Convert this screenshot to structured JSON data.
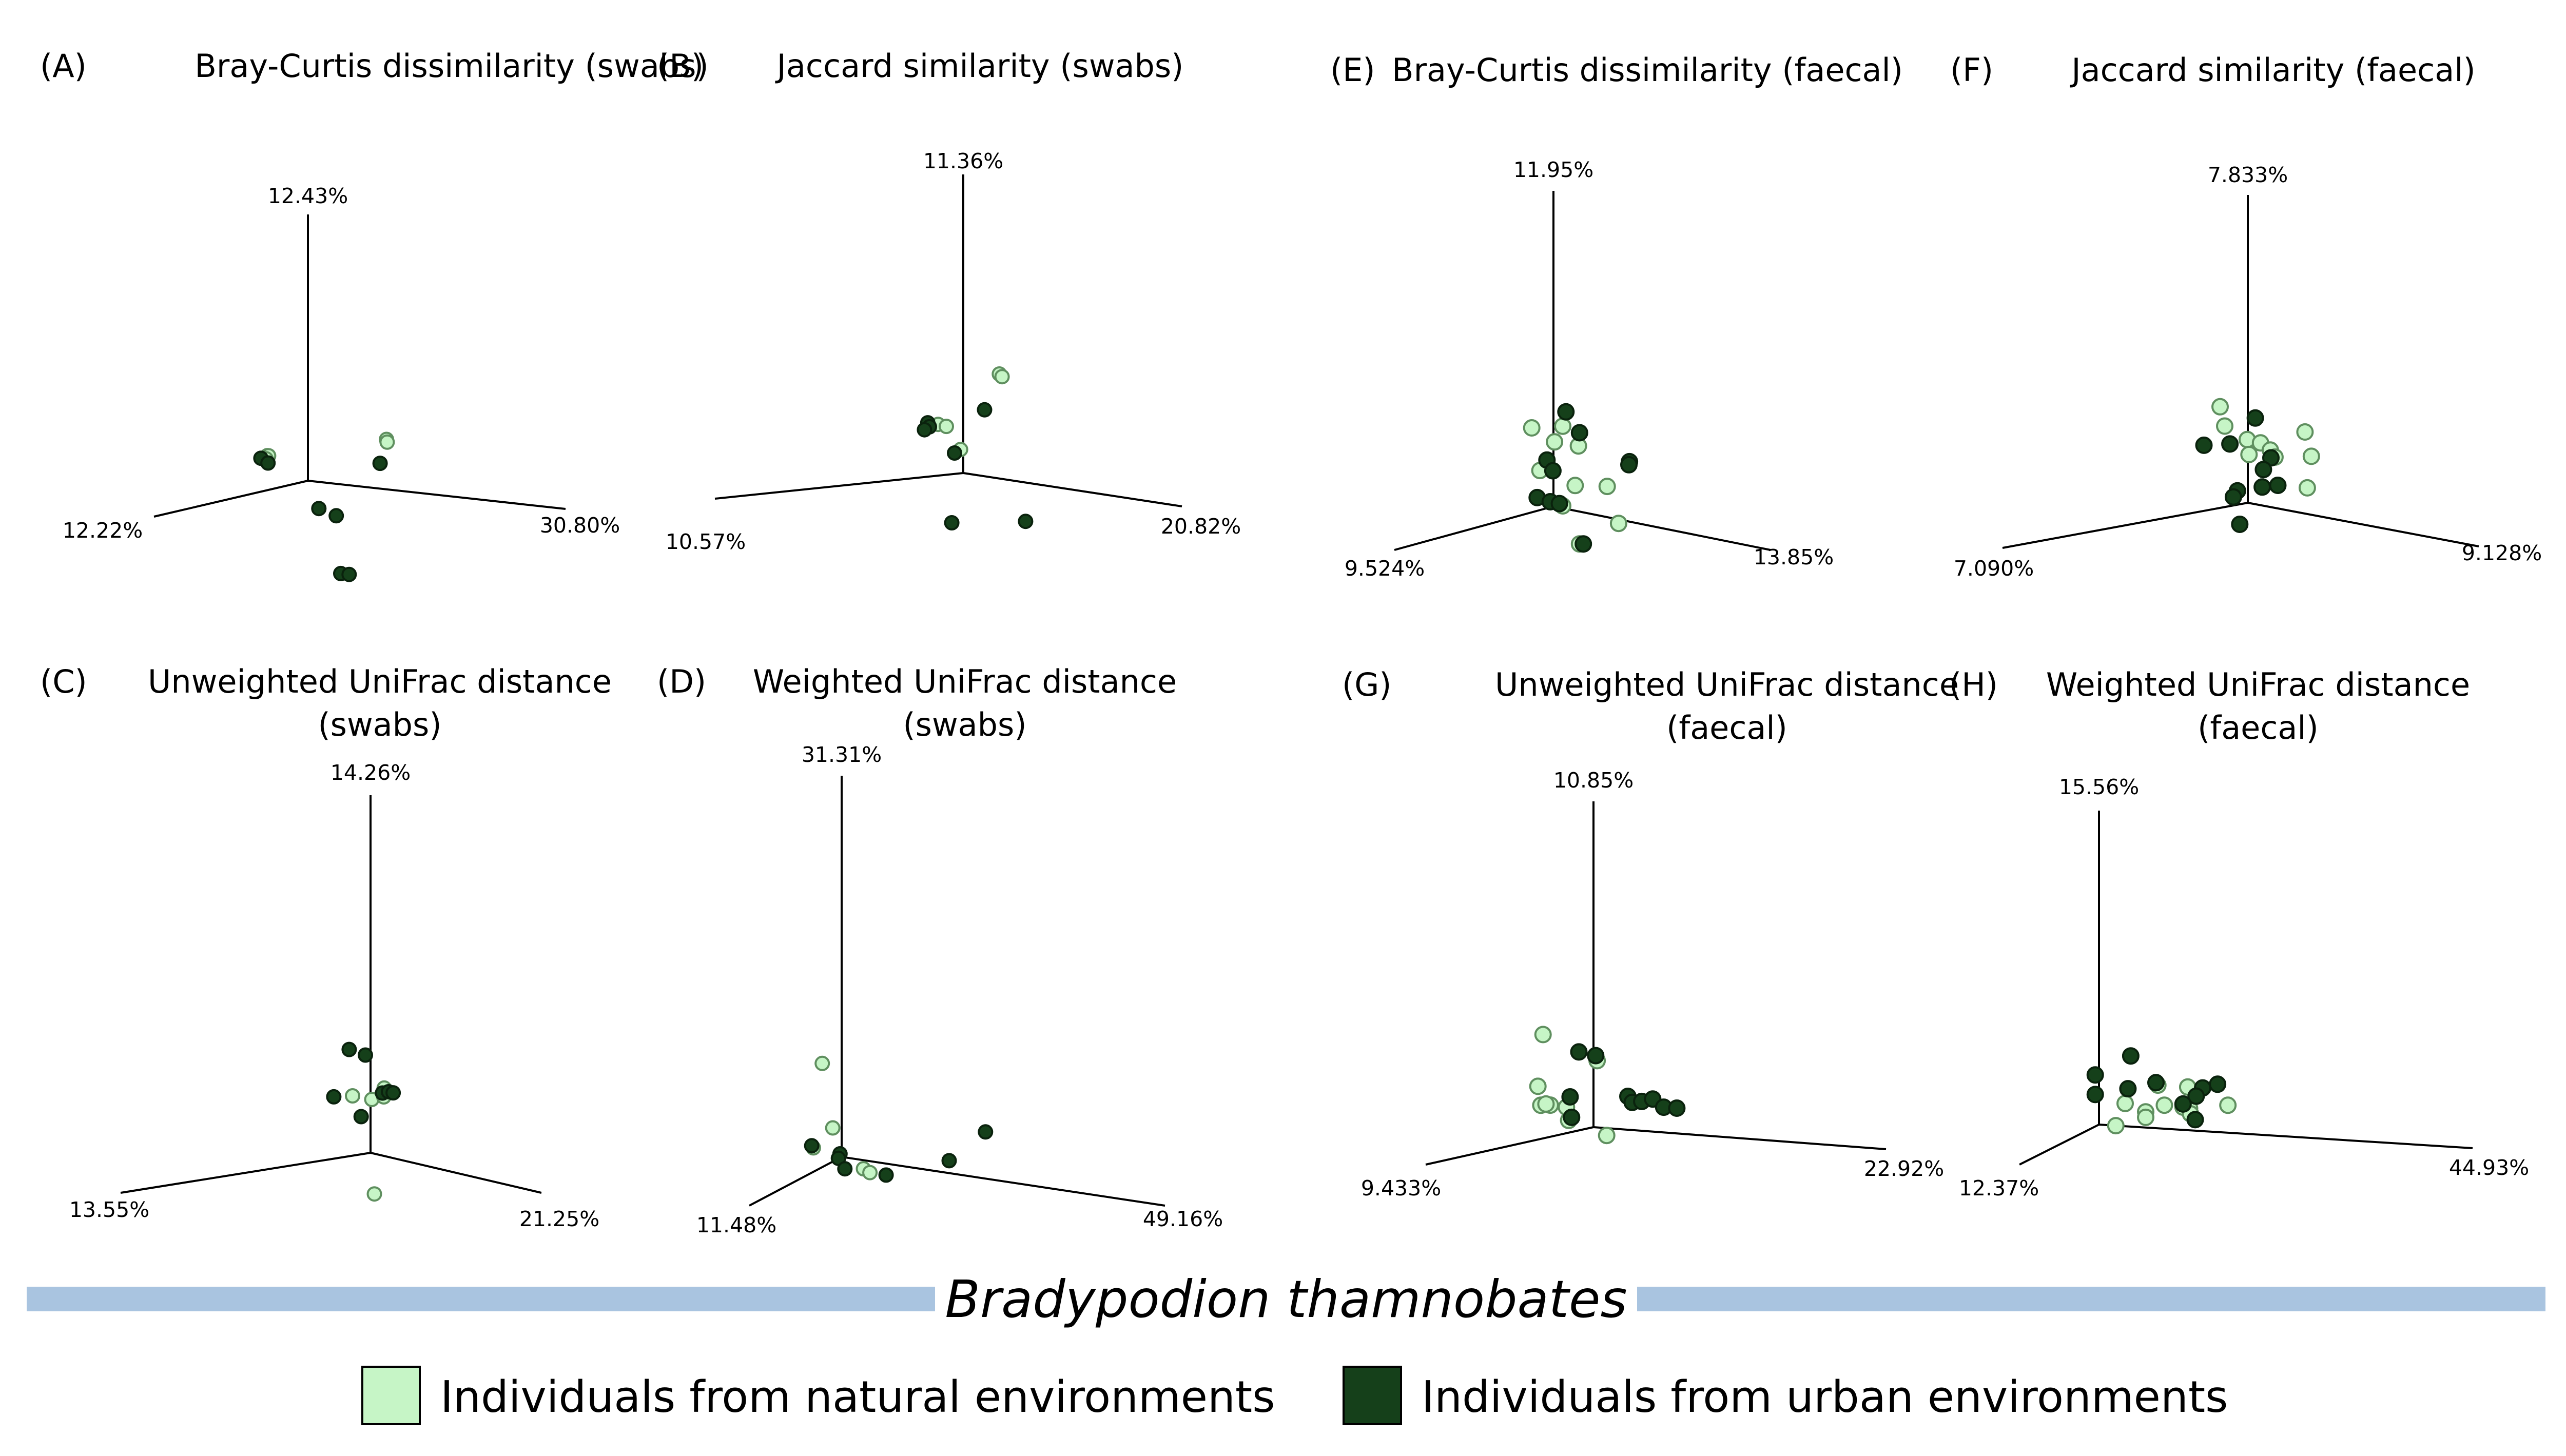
{
  "colors": {
    "natural": "#c6f5c6",
    "urban": "#15401a",
    "species_bar": "#a9c4e0"
  },
  "species": "Bradypodion thamnobates",
  "legend": [
    {
      "key": "natural",
      "label": "Individuals from natural environments"
    },
    {
      "key": "urban",
      "label": "Individuals from urban environments"
    }
  ],
  "chart_data": [
    {
      "type": "scatter",
      "letter": "(A)",
      "title": [
        "Bray-Curtis dissimilarity (swabs)"
      ],
      "axes": {
        "vertical": "12.43%",
        "left": "12.22%",
        "right": "30.80%"
      },
      "points": [
        {
          "group": "natural",
          "x": -0.63,
          "y": 0.31
        },
        {
          "group": "natural",
          "x": -0.61,
          "y": 0.31
        },
        {
          "group": "natural",
          "x": -0.65,
          "y": 0.26
        },
        {
          "group": "natural",
          "x": 1.22,
          "y": 0.75
        },
        {
          "group": "natural",
          "x": 1.23,
          "y": 0.71
        },
        {
          "group": "urban",
          "x": -0.73,
          "y": 0.26
        },
        {
          "group": "urban",
          "x": -0.62,
          "y": 0.2
        },
        {
          "group": "urban",
          "x": 1.12,
          "y": 0.38
        },
        {
          "group": "urban",
          "x": 0.17,
          "y": -0.4
        },
        {
          "group": "urban",
          "x": 0.44,
          "y": -0.48
        },
        {
          "group": "urban",
          "x": 0.51,
          "y": -1.34
        },
        {
          "group": "urban",
          "x": 0.64,
          "y": -1.34
        }
      ]
    },
    {
      "type": "scatter",
      "letter": "(B)",
      "title": [
        "Jaccard similarity (swabs)"
      ],
      "axes": {
        "vertical": "11.36%",
        "left": "10.57%",
        "right": "20.82%"
      },
      "points": [
        {
          "group": "natural",
          "x": -0.46,
          "y": 0.6
        },
        {
          "group": "natural",
          "x": -0.31,
          "y": 0.59
        },
        {
          "group": "natural",
          "x": -0.05,
          "y": 0.31
        },
        {
          "group": "natural",
          "x": 0.66,
          "y": 1.4
        },
        {
          "group": "natural",
          "x": 0.71,
          "y": 1.37
        },
        {
          "group": "urban",
          "x": -0.65,
          "y": 0.6
        },
        {
          "group": "urban",
          "x": -0.62,
          "y": 0.55
        },
        {
          "group": "urban",
          "x": -0.71,
          "y": 0.5
        },
        {
          "group": "urban",
          "x": 0.39,
          "y": 0.89
        },
        {
          "group": "urban",
          "x": -0.16,
          "y": 0.25
        },
        {
          "group": "urban",
          "x": -0.21,
          "y": -0.69
        },
        {
          "group": "urban",
          "x": 1.14,
          "y": -0.52
        }
      ]
    },
    {
      "type": "scatter",
      "letter": "(E)",
      "title": [
        "Bray-Curtis dissimilarity (faecal)"
      ],
      "axes": {
        "vertical": "11.95%",
        "left": "9.524%",
        "right": "13.85%"
      },
      "points": [
        {
          "group": "natural",
          "x": -0.4,
          "y": 0.94
        },
        {
          "group": "natural",
          "x": 0.17,
          "y": 1.04
        },
        {
          "group": "natural",
          "x": 0.02,
          "y": 0.82
        },
        {
          "group": "natural",
          "x": 0.46,
          "y": 0.83
        },
        {
          "group": "natural",
          "x": -0.25,
          "y": 0.42
        },
        {
          "group": "natural",
          "x": 0.4,
          "y": 0.32
        },
        {
          "group": "natural",
          "x": 0.99,
          "y": 0.39
        },
        {
          "group": "natural",
          "x": 0.17,
          "y": 0.03
        },
        {
          "group": "natural",
          "x": 1.2,
          "y": -0.05
        },
        {
          "group": "natural",
          "x": 0.48,
          "y": -0.41
        },
        {
          "group": "urban",
          "x": 0.23,
          "y": 1.23
        },
        {
          "group": "urban",
          "x": 0.48,
          "y": 1.0
        },
        {
          "group": "urban",
          "x": 1.4,
          "y": 0.76
        },
        {
          "group": "urban",
          "x": 1.39,
          "y": 0.72
        },
        {
          "group": "urban",
          "x": -0.12,
          "y": 0.57
        },
        {
          "group": "urban",
          "x": -0.01,
          "y": 0.45
        },
        {
          "group": "urban",
          "x": -0.3,
          "y": 0.07
        },
        {
          "group": "urban",
          "x": -0.06,
          "y": 0.05
        },
        {
          "group": "urban",
          "x": 0.11,
          "y": 0.05
        },
        {
          "group": "urban",
          "x": 0.55,
          "y": -0.4
        }
      ]
    },
    {
      "type": "scatter",
      "letter": "(F)",
      "title": [
        "Jaccard similarity (faecal)"
      ],
      "axes": {
        "vertical": "7.833%",
        "left": "7.090%",
        "right": "9.128%"
      },
      "points": [
        {
          "group": "natural",
          "x": -0.48,
          "y": 1.18
        },
        {
          "group": "natural",
          "x": -0.4,
          "y": 0.94
        },
        {
          "group": "natural",
          "x": -0.01,
          "y": 0.82
        },
        {
          "group": "natural",
          "x": 0.22,
          "y": 0.81
        },
        {
          "group": "natural",
          "x": 0.39,
          "y": 0.74
        },
        {
          "group": "natural",
          "x": 0.47,
          "y": 0.66
        },
        {
          "group": "natural",
          "x": 0.02,
          "y": 0.63
        },
        {
          "group": "natural",
          "x": 0.99,
          "y": 1.06
        },
        {
          "group": "natural",
          "x": 1.1,
          "y": 0.76
        },
        {
          "group": "natural",
          "x": 1.03,
          "y": 0.34
        },
        {
          "group": "urban",
          "x": 0.13,
          "y": 1.12
        },
        {
          "group": "urban",
          "x": -0.31,
          "y": 0.72
        },
        {
          "group": "urban",
          "x": -0.76,
          "y": 0.64
        },
        {
          "group": "urban",
          "x": 0.4,
          "y": 0.64
        },
        {
          "group": "urban",
          "x": 0.27,
          "y": 0.47
        },
        {
          "group": "urban",
          "x": 0.25,
          "y": 0.24
        },
        {
          "group": "urban",
          "x": 0.52,
          "y": 0.3
        },
        {
          "group": "urban",
          "x": -0.18,
          "y": 0.13
        },
        {
          "group": "urban",
          "x": -0.25,
          "y": 0.04
        },
        {
          "group": "urban",
          "x": -0.14,
          "y": -0.3
        }
      ]
    },
    {
      "type": "scatter",
      "letter": "(C)",
      "title": [
        "Unweighted UniFrac distance",
        "(swabs)"
      ],
      "axes": {
        "vertical": "14.26%",
        "left": "13.55%",
        "right": "21.25%"
      },
      "points": [
        {
          "group": "natural",
          "x": -0.42,
          "y": 0.59
        },
        {
          "group": "natural",
          "x": 0.03,
          "y": 0.6
        },
        {
          "group": "natural",
          "x": 0.31,
          "y": 0.66
        },
        {
          "group": "natural",
          "x": 0.32,
          "y": 0.76
        },
        {
          "group": "natural",
          "x": 0.09,
          "y": -0.45
        },
        {
          "group": "urban",
          "x": -0.5,
          "y": 1.1
        },
        {
          "group": "urban",
          "x": -0.12,
          "y": 1.08
        },
        {
          "group": "urban",
          "x": 0.28,
          "y": 0.7
        },
        {
          "group": "urban",
          "x": 0.42,
          "y": 0.73
        },
        {
          "group": "urban",
          "x": 0.53,
          "y": 0.73
        },
        {
          "group": "urban",
          "x": -0.86,
          "y": 0.53
        },
        {
          "group": "urban",
          "x": -0.22,
          "y": 0.38
        }
      ]
    },
    {
      "type": "scatter",
      "letter": "(D)",
      "title": [
        "Weighted UniFrac distance",
        "(swabs)"
      ],
      "axes": {
        "vertical": "31.31%",
        "left": "11.48%",
        "right": "49.16%"
      },
      "points": [
        {
          "group": "natural",
          "x": -0.24,
          "y": 0.95
        },
        {
          "group": "natural",
          "x": -0.11,
          "y": 0.29
        },
        {
          "group": "natural",
          "x": -0.35,
          "y": 0.05
        },
        {
          "group": "natural",
          "x": 0.27,
          "y": -0.09
        },
        {
          "group": "natural",
          "x": 0.35,
          "y": -0.12
        },
        {
          "group": "urban",
          "x": -0.37,
          "y": 0.07
        },
        {
          "group": "urban",
          "x": -0.02,
          "y": 0.03
        },
        {
          "group": "urban",
          "x": -0.04,
          "y": -0.02
        },
        {
          "group": "urban",
          "x": 0.04,
          "y": -0.12
        },
        {
          "group": "urban",
          "x": 0.55,
          "y": -0.12
        },
        {
          "group": "urban",
          "x": 1.33,
          "y": 0.13
        },
        {
          "group": "urban",
          "x": 1.78,
          "y": 0.49
        }
      ]
    },
    {
      "type": "scatter",
      "letter": "(G)",
      "title": [
        "Unweighted UniFrac distance",
        "(faecal)"
      ],
      "axes": {
        "vertical": "10.85%",
        "left": "9.433%",
        "right": "22.92%"
      },
      "points": [
        {
          "group": "natural",
          "x": -0.69,
          "y": 1.09
        },
        {
          "group": "natural",
          "x": -0.76,
          "y": 0.45
        },
        {
          "group": "natural",
          "x": -0.59,
          "y": 0.23
        },
        {
          "group": "natural",
          "x": -0.72,
          "y": 0.22
        },
        {
          "group": "natural",
          "x": -0.65,
          "y": 0.24
        },
        {
          "group": "natural",
          "x": -0.37,
          "y": 0.22
        },
        {
          "group": "natural",
          "x": -0.34,
          "y": 0.06
        },
        {
          "group": "natural",
          "x": 0.05,
          "y": 0.82
        },
        {
          "group": "natural",
          "x": 0.18,
          "y": -0.09
        },
        {
          "group": "urban",
          "x": -0.2,
          "y": 0.91
        },
        {
          "group": "urban",
          "x": 0.03,
          "y": 0.88
        },
        {
          "group": "urban",
          "x": -0.32,
          "y": 0.35
        },
        {
          "group": "urban",
          "x": -0.3,
          "y": 0.1
        },
        {
          "group": "urban",
          "x": 0.47,
          "y": 0.41
        },
        {
          "group": "urban",
          "x": 0.53,
          "y": 0.34
        },
        {
          "group": "urban",
          "x": 0.66,
          "y": 0.36
        },
        {
          "group": "urban",
          "x": 0.81,
          "y": 0.4
        },
        {
          "group": "urban",
          "x": 0.96,
          "y": 0.31
        },
        {
          "group": "urban",
          "x": 1.14,
          "y": 0.31
        }
      ]
    },
    {
      "type": "scatter",
      "letter": "(H)",
      "title": [
        "Weighted UniFrac distance",
        "(faecal)"
      ],
      "axes": {
        "vertical": "15.56%",
        "left": "12.37%",
        "right": "44.93%"
      },
      "points": [
        {
          "group": "natural",
          "x": 0.63,
          "y": 0.55
        },
        {
          "group": "natural",
          "x": 0.95,
          "y": 0.55
        },
        {
          "group": "natural",
          "x": 0.28,
          "y": 0.29
        },
        {
          "group": "natural",
          "x": 0.7,
          "y": 0.3
        },
        {
          "group": "natural",
          "x": 0.9,
          "y": 0.29
        },
        {
          "group": "natural",
          "x": 0.97,
          "y": 0.28
        },
        {
          "group": "natural",
          "x": 1.38,
          "y": 0.35
        },
        {
          "group": "natural",
          "x": 0.5,
          "y": 0.2
        },
        {
          "group": "natural",
          "x": 0.98,
          "y": 0.21
        },
        {
          "group": "natural",
          "x": 0.5,
          "y": 0.13
        },
        {
          "group": "natural",
          "x": 0.18,
          "y": 0.0
        },
        {
          "group": "urban",
          "x": 0.34,
          "y": 0.9
        },
        {
          "group": "urban",
          "x": -0.04,
          "y": 0.63
        },
        {
          "group": "urban",
          "x": -0.04,
          "y": 0.38
        },
        {
          "group": "urban",
          "x": 0.31,
          "y": 0.48
        },
        {
          "group": "urban",
          "x": 0.61,
          "y": 0.58
        },
        {
          "group": "urban",
          "x": 1.27,
          "y": 0.61
        },
        {
          "group": "urban",
          "x": 1.11,
          "y": 0.55
        },
        {
          "group": "urban",
          "x": 1.04,
          "y": 0.44
        },
        {
          "group": "urban",
          "x": 0.9,
          "y": 0.33
        },
        {
          "group": "urban",
          "x": 1.03,
          "y": 0.14
        }
      ]
    }
  ]
}
